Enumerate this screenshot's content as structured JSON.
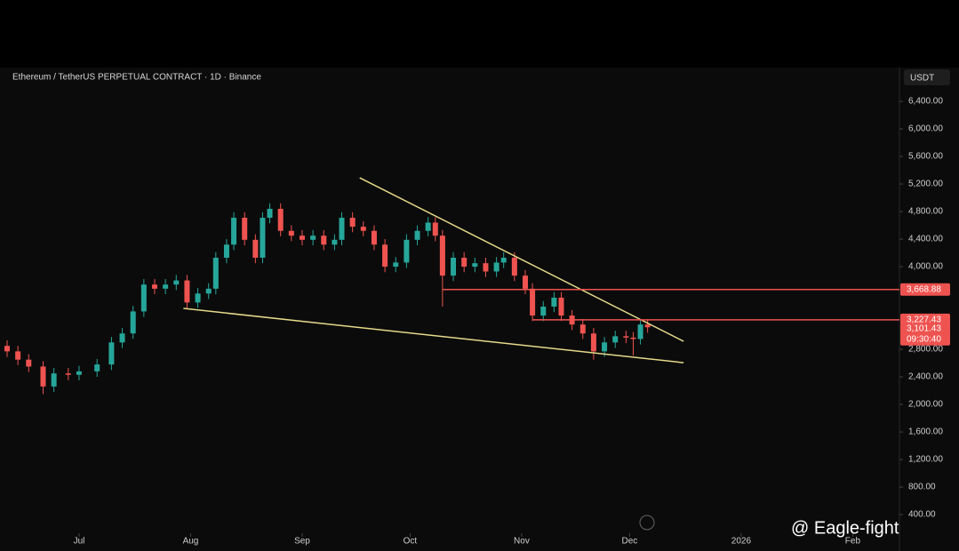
{
  "chart_data": {
    "type": "candlestick",
    "title": "Ethereum / TetherUS PERPETUAL CONTRACT · 1D · Binance",
    "currency": "USDT",
    "watermark": "@ Eagle-fight",
    "up_color": "#26a69a",
    "down_color": "#ef5350",
    "x": [
      -20,
      -17,
      -14,
      -10,
      -7,
      -3,
      0,
      5,
      9,
      12,
      15,
      18,
      21,
      24,
      27,
      30,
      33,
      36,
      38,
      41,
      43,
      46,
      49,
      51,
      53,
      56,
      59,
      62,
      65,
      68,
      71,
      73,
      76,
      79,
      82,
      85,
      88,
      91,
      94,
      97,
      99,
      101,
      104,
      107,
      110,
      113,
      116,
      118,
      121,
      124,
      126,
      129,
      132,
      134,
      137,
      140,
      143,
      146,
      149,
      152,
      154,
      156,
      158
    ],
    "open": [
      2850,
      2770,
      2650,
      2550,
      2260,
      2450,
      2430,
      2480,
      2580,
      2900,
      3030,
      3350,
      3740,
      3680,
      3740,
      3800,
      3480,
      3610,
      3680,
      4130,
      4320,
      4710,
      4390,
      4130,
      4710,
      4840,
      4520,
      4450,
      4390,
      4450,
      4320,
      4390,
      4710,
      4580,
      4520,
      4320,
      4000,
      4060,
      4390,
      4520,
      4640,
      4450,
      3870,
      4130,
      4000,
      4050,
      3930,
      4060,
      4130,
      3870,
      3680,
      3290,
      3420,
      3550,
      3290,
      3160,
      3030,
      2770,
      2900,
      2990,
      2970,
      2950,
      3160
    ],
    "high": [
      2930,
      2850,
      2730,
      2630,
      2530,
      2530,
      2560,
      2660,
      2980,
      3110,
      3430,
      3820,
      3820,
      3820,
      3880,
      3880,
      3690,
      3760,
      4210,
      4400,
      4790,
      4790,
      4470,
      4790,
      4920,
      4920,
      4600,
      4530,
      4530,
      4530,
      4470,
      4790,
      4790,
      4660,
      4600,
      4400,
      4140,
      4470,
      4600,
      4720,
      4720,
      4530,
      4210,
      4210,
      4130,
      4130,
      4140,
      4210,
      4210,
      3950,
      3760,
      3500,
      3630,
      3630,
      3370,
      3240,
      3110,
      2980,
      3070,
      3070,
      3050,
      3240,
      3240
    ],
    "low": [
      2690,
      2570,
      2470,
      2150,
      2180,
      2350,
      2350,
      2400,
      2500,
      2820,
      2950,
      3270,
      3600,
      3600,
      3660,
      3400,
      3400,
      3530,
      3600,
      4050,
      4240,
      4310,
      4050,
      4050,
      4630,
      4440,
      4370,
      4310,
      4310,
      4240,
      4240,
      4310,
      4500,
      4440,
      4240,
      3920,
      3920,
      3980,
      4310,
      4440,
      4370,
      3420,
      3790,
      3920,
      3920,
      3850,
      3850,
      3980,
      3790,
      3600,
      3210,
      3210,
      3340,
      3210,
      3080,
      2950,
      2650,
      2690,
      2820,
      2890,
      2710,
      2870,
      3040
    ],
    "close": [
      2770,
      2650,
      2550,
      2260,
      2450,
      2430,
      2480,
      2580,
      2900,
      3030,
      3350,
      3740,
      3680,
      3740,
      3800,
      3480,
      3610,
      3680,
      4130,
      4320,
      4710,
      4390,
      4130,
      4710,
      4840,
      4520,
      4450,
      4390,
      4450,
      4320,
      4390,
      4710,
      4580,
      4520,
      4320,
      4000,
      4060,
      4390,
      4520,
      4640,
      4450,
      3870,
      4130,
      4000,
      4050,
      3930,
      4060,
      4130,
      3870,
      3680,
      3290,
      3420,
      3550,
      3290,
      3160,
      3030,
      2770,
      2900,
      2990,
      2970,
      2950,
      3160,
      3120
    ],
    "xlim": [
      -20,
      227
    ],
    "xticks": [
      {
        "value": 0,
        "label": "Jul"
      },
      {
        "value": 31,
        "label": "Aug"
      },
      {
        "value": 62,
        "label": "Sep"
      },
      {
        "value": 92,
        "label": "Oct"
      },
      {
        "value": 123,
        "label": "Nov"
      },
      {
        "value": 153,
        "label": "Dec"
      },
      {
        "value": 184,
        "label": "2026"
      },
      {
        "value": 215,
        "label": "Feb"
      }
    ],
    "ylim": [
      130,
      6865
    ],
    "yticks": [
      {
        "value": 400,
        "label": "400.00"
      },
      {
        "value": 800,
        "label": "800.00"
      },
      {
        "value": 1200,
        "label": "1,200.00"
      },
      {
        "value": 1600,
        "label": "1,600.00"
      },
      {
        "value": 2000,
        "label": "2,000.00"
      },
      {
        "value": 2400,
        "label": "2,400.00"
      },
      {
        "value": 2800,
        "label": "2,800.00"
      },
      {
        "value": 4000,
        "label": "4,000.00"
      },
      {
        "value": 4400,
        "label": "4,400.00"
      },
      {
        "value": 4800,
        "label": "4,800.00"
      },
      {
        "value": 5200,
        "label": "5,200.00"
      },
      {
        "value": 5600,
        "label": "5,600.00"
      },
      {
        "value": 6000,
        "label": "6,000.00"
      },
      {
        "value": 6400,
        "label": "6,400.00"
      }
    ],
    "levels": [
      {
        "x": 101,
        "value": 3668.88,
        "label": "3,668.88"
      },
      {
        "x": 126,
        "value": 3227.43,
        "label": "3,227.43"
      }
    ],
    "last_price": {
      "value": 3101.43,
      "label": "3,101.43",
      "countdown": "09:30:40"
    },
    "trendlines": [
      {
        "x": [
          78,
          168
        ],
        "values": [
          5290,
          2916
        ],
        "color": "#e6d98a"
      },
      {
        "x": [
          29,
          168
        ],
        "values": [
          3394,
          2606
        ],
        "color": "#e6d98a"
      }
    ]
  }
}
